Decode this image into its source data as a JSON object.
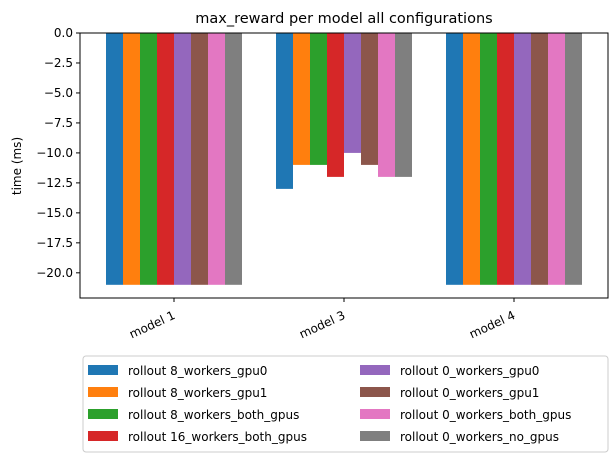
{
  "chart_data": {
    "type": "bar",
    "title": "max_reward per model all configurations",
    "xlabel": "",
    "ylabel": "time (ms)",
    "ylim": [
      -22.1,
      0
    ],
    "yticks": [
      "0.0",
      "−2.5",
      "−5.0",
      "−7.5",
      "−10.0",
      "−12.5",
      "−15.0",
      "−17.5",
      "−20.0"
    ],
    "ytick_values": [
      0,
      -2.5,
      -5,
      -7.5,
      -10,
      -12.5,
      -15,
      -17.5,
      -20
    ],
    "categories": [
      "model 1",
      "model 3",
      "model 4"
    ],
    "grid": false,
    "legend_position": "below",
    "series": [
      {
        "name": "rollout 8_workers_gpu0",
        "color": "#1f77b4",
        "values": [
          -21,
          -13,
          -21
        ]
      },
      {
        "name": "rollout 8_workers_gpu1",
        "color": "#ff7f0e",
        "values": [
          -21,
          -11,
          -21
        ]
      },
      {
        "name": "rollout 8_workers_both_gpus",
        "color": "#2ca02c",
        "values": [
          -21,
          -11,
          -21
        ]
      },
      {
        "name": "rollout 16_workers_both_gpus",
        "color": "#d62728",
        "values": [
          -21,
          -12,
          -21
        ]
      },
      {
        "name": "rollout 0_workers_gpu0",
        "color": "#9467bd",
        "values": [
          -21,
          -10,
          -21
        ]
      },
      {
        "name": "rollout 0_workers_gpu1",
        "color": "#8c564b",
        "values": [
          -21,
          -11,
          -21
        ]
      },
      {
        "name": "rollout 0_workers_both_gpus",
        "color": "#e377c2",
        "values": [
          -21,
          -12,
          -21
        ]
      },
      {
        "name": "rollout 0_workers_no_gpus",
        "color": "#7f7f7f",
        "values": [
          -21,
          -12,
          -21
        ]
      }
    ]
  }
}
